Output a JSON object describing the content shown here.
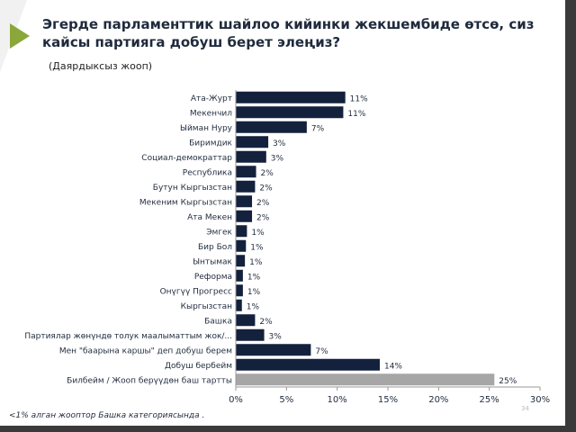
{
  "slide": {
    "title": "Эгерде парламенттик шайлоо кийинки жекшембиде өтсө, сиз кайсы партияга добуш берет элеңиз?",
    "subtitle": "(Даярдыксыз жооп)",
    "footnote": "<1% алган жооптор Башка категориясында .",
    "page_number": "34"
  },
  "colors": {
    "primary": "#13213d",
    "gray": "#a6a6a6",
    "accent": "#8aa83a"
  },
  "chart_data": {
    "type": "bar",
    "orientation": "horizontal",
    "title": "",
    "xlabel": "",
    "ylabel": "",
    "xlim": [
      0,
      30
    ],
    "x_ticks": [
      "0%",
      "5%",
      "10%",
      "15%",
      "20%",
      "25%",
      "30%"
    ],
    "grid": false,
    "categories": [
      "Ата-Журт",
      "Мекенчил",
      "Ыйман Нуру",
      "Биримдик",
      "Социал-демократтар",
      "Республика",
      "Бутун Кыргызстан",
      "Мекеним Кыргызстан",
      "Ата Мекен",
      "Эмгек",
      "Бир Бол",
      "Ынтымак",
      "Реформа",
      "Онүгүү Прогресс",
      "Кыргызстан",
      "Башка",
      "Партиялар жөнүндө толук маалыматтым жок/...",
      "Мен \"баарына каршы\" деп добуш берем",
      "Добуш бербейм",
      "Билбейм / Жооп берүүдөн баш тартты"
    ],
    "values": [
      10.8,
      10.6,
      7.0,
      3.2,
      3.0,
      2.0,
      1.9,
      1.6,
      1.6,
      1.1,
      1.0,
      0.9,
      0.7,
      0.7,
      0.6,
      1.9,
      2.8,
      7.4,
      14.2,
      25.5
    ],
    "labels": [
      "11%",
      "11%",
      "7%",
      "3%",
      "3%",
      "2%",
      "2%",
      "2%",
      "2%",
      "1%",
      "1%",
      "1%",
      "1%",
      "1%",
      "1%",
      "2%",
      "3%",
      "7%",
      "14%",
      "25%"
    ],
    "highlight": [
      false,
      false,
      false,
      false,
      false,
      false,
      false,
      false,
      false,
      false,
      false,
      false,
      false,
      false,
      false,
      false,
      false,
      false,
      false,
      true
    ]
  }
}
